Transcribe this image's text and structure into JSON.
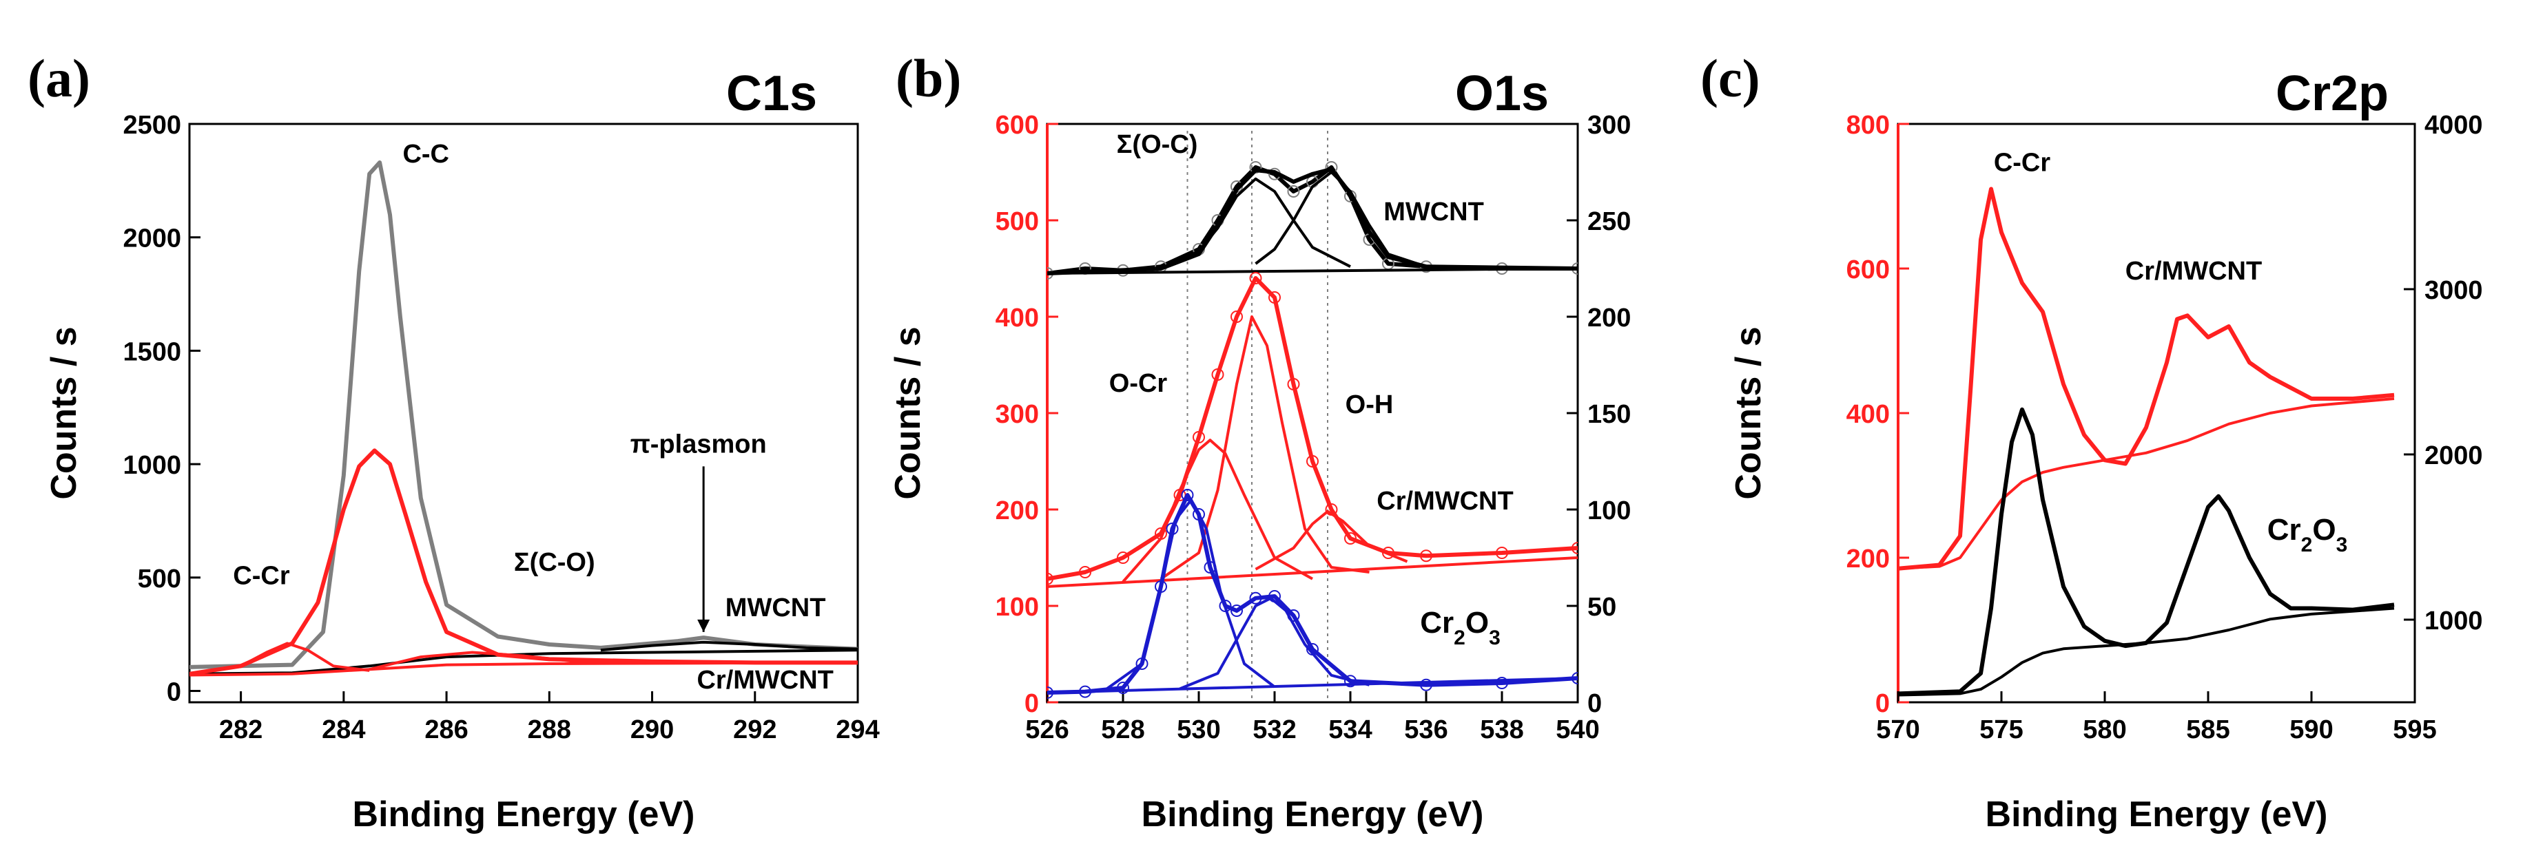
{
  "figure": {
    "panels": [
      "(a)",
      "(b)",
      "(c)"
    ]
  },
  "colors": {
    "black": "#000000",
    "red": "#ff2020",
    "blue": "#1a1acc",
    "grey": "#7f7f7f"
  },
  "chart_data": [
    {
      "panel_label": "(a)",
      "type": "line",
      "title": "C1s",
      "xlabel": "Binding Energy (eV)",
      "ylabel": "Counts / s",
      "xlim": [
        281,
        294
      ],
      "ylim": [
        -50,
        2500
      ],
      "xticks": [
        282,
        284,
        286,
        288,
        290,
        292,
        294
      ],
      "yticks": [
        0,
        500,
        1000,
        1500,
        2000,
        2500
      ],
      "series": [
        {
          "name": "MWCNT",
          "role": "data",
          "x": [
            281,
            283,
            283.6,
            284,
            284.3,
            284.5,
            284.7,
            284.9,
            285.1,
            285.5,
            286,
            287,
            288,
            289,
            290.5,
            291,
            292,
            294
          ],
          "values": [
            105,
            115,
            260,
            950,
            1850,
            2280,
            2330,
            2100,
            1650,
            850,
            380,
            240,
            205,
            190,
            220,
            235,
            205,
            185
          ]
        },
        {
          "name": "MWCNT background",
          "role": "background",
          "x": [
            281,
            283,
            284.5,
            286,
            288,
            290,
            292,
            294
          ],
          "values": [
            75,
            80,
            110,
            150,
            165,
            170,
            175,
            180
          ]
        },
        {
          "name": "MWCNT pi-plasmon",
          "role": "component",
          "x": [
            289,
            290,
            291,
            292,
            293,
            294
          ],
          "values": [
            180,
            200,
            215,
            205,
            190,
            185
          ]
        },
        {
          "name": "Cr/MWCNT",
          "role": "data",
          "x": [
            281,
            282,
            282.5,
            283,
            283.5,
            284,
            284.3,
            284.6,
            284.9,
            285.2,
            285.6,
            286,
            287,
            288,
            290,
            292,
            294
          ],
          "values": [
            75,
            110,
            160,
            210,
            390,
            800,
            990,
            1060,
            1000,
            780,
            480,
            260,
            160,
            140,
            130,
            125,
            125
          ]
        },
        {
          "name": "Cr/MWCNT background",
          "role": "background",
          "x": [
            281,
            283,
            284.5,
            286,
            288,
            294
          ],
          "values": [
            70,
            75,
            95,
            115,
            120,
            125
          ]
        },
        {
          "name": "C-Cr component",
          "role": "component",
          "x": [
            281,
            282,
            282.5,
            282.9,
            283.3,
            283.8,
            284.5
          ],
          "values": [
            72,
            110,
            170,
            210,
            180,
            110,
            90
          ]
        },
        {
          "name": "Σ(C-O) component",
          "role": "component",
          "x": [
            284.5,
            285.5,
            286.5,
            287.5,
            288.5,
            290
          ],
          "values": [
            95,
            150,
            170,
            155,
            130,
            125
          ]
        }
      ],
      "annotations": [
        {
          "text": "C-C",
          "x": 285.6,
          "y": 2330
        },
        {
          "text": "C-Cr",
          "x": 282.4,
          "y": 470
        },
        {
          "text": "Σ(C-O)",
          "x": 288.1,
          "y": 530
        },
        {
          "text": "π-plasmon",
          "x": 290.9,
          "y": 1050
        },
        {
          "text": "MWCNT",
          "x": 292.4,
          "y": 330
        },
        {
          "text": "Cr/MWCNT",
          "x": 292.2,
          "y": 10
        }
      ],
      "plasmon_arrow": {
        "x": 291,
        "y_from": 990,
        "y_to": 260
      }
    },
    {
      "panel_label": "(b)",
      "type": "scatter",
      "title": "O1s",
      "xlabel": "Binding Energy (eV)",
      "ylabel": "Counts / s",
      "xlim": [
        526,
        540
      ],
      "ylim": [
        0,
        600
      ],
      "xticks": [
        526,
        528,
        530,
        532,
        534,
        536,
        538,
        540
      ],
      "yticks": [
        0,
        100,
        200,
        300,
        400,
        500,
        600
      ],
      "y2lim": [
        0,
        300
      ],
      "y2ticks": [
        0,
        50,
        100,
        150,
        200,
        250,
        300
      ],
      "reference_lines_x": [
        529.7,
        531.4,
        533.4
      ],
      "series": [
        {
          "name": "MWCNT",
          "role": "data",
          "x": [
            526,
            527,
            528,
            529,
            530,
            530.5,
            531,
            531.5,
            532,
            532.5,
            533,
            533.5,
            534,
            534.5,
            535,
            536,
            538,
            540
          ],
          "values": [
            445,
            450,
            448,
            452,
            470,
            500,
            535,
            555,
            548,
            530,
            540,
            555,
            525,
            480,
            455,
            452,
            450,
            450
          ]
        },
        {
          "name": "MWCNT fit envelope",
          "role": "fit",
          "x": [
            526,
            529,
            530,
            530.5,
            531,
            531.5,
            532,
            532.5,
            533,
            533.5,
            534,
            534.5,
            535,
            536,
            540
          ],
          "values": [
            445,
            450,
            465,
            495,
            532,
            552,
            550,
            540,
            548,
            553,
            528,
            488,
            462,
            452,
            450
          ]
        },
        {
          "name": "MWCNT Σ(O-C) component 1",
          "role": "component",
          "x": [
            529,
            530,
            530.5,
            531,
            531.5,
            532,
            532.5,
            533,
            534
          ],
          "values": [
            450,
            468,
            492,
            525,
            543,
            530,
            500,
            472,
            452
          ]
        },
        {
          "name": "MWCNT Σ(O-C) component 2",
          "role": "component",
          "x": [
            531.5,
            532,
            532.5,
            533,
            533.5,
            534,
            534.5,
            535,
            536
          ],
          "values": [
            455,
            470,
            500,
            535,
            550,
            530,
            495,
            465,
            452
          ]
        },
        {
          "name": "MWCNT baseline",
          "role": "background",
          "x": [
            526,
            540
          ],
          "values": [
            445,
            450
          ]
        },
        {
          "name": "Cr/MWCNT",
          "role": "data",
          "x": [
            526,
            527,
            528,
            529,
            529.5,
            530,
            530.5,
            531,
            531.5,
            532,
            532.5,
            533,
            533.5,
            534,
            535,
            536,
            538,
            540
          ],
          "values": [
            128,
            135,
            150,
            175,
            215,
            275,
            340,
            400,
            440,
            420,
            330,
            250,
            200,
            170,
            155,
            152,
            155,
            160
          ]
        },
        {
          "name": "Cr/MWCNT baseline",
          "role": "background",
          "x": [
            526,
            540
          ],
          "values": [
            120,
            150
          ]
        },
        {
          "name": "Cr/MWCNT O-Cr component",
          "role": "component",
          "x": [
            528,
            529,
            529.5,
            530,
            530.3,
            530.7,
            531.2,
            532,
            533
          ],
          "values": [
            125,
            170,
            220,
            262,
            272,
            258,
            215,
            150,
            128
          ]
        },
        {
          "name": "Cr/MWCNT Σ(O-C) component",
          "role": "component",
          "x": [
            529,
            530,
            530.5,
            531,
            531.4,
            531.8,
            532.2,
            532.8,
            533.5,
            534.5
          ],
          "values": [
            128,
            155,
            220,
            330,
            400,
            370,
            290,
            180,
            140,
            135
          ]
        },
        {
          "name": "Cr/MWCNT O-H component",
          "role": "component",
          "x": [
            531.5,
            532.5,
            533,
            533.4,
            533.8,
            534.5,
            535.5
          ],
          "values": [
            138,
            160,
            185,
            198,
            188,
            162,
            146
          ]
        },
        {
          "name": "Cr2O3",
          "role": "data",
          "x": [
            526,
            527,
            528,
            528.5,
            529,
            529.3,
            529.7,
            530,
            530.3,
            530.7,
            531,
            531.5,
            532,
            532.5,
            533,
            534,
            536,
            538,
            540
          ],
          "values": [
            10,
            11,
            15,
            40,
            120,
            180,
            215,
            195,
            140,
            100,
            95,
            108,
            110,
            90,
            55,
            22,
            18,
            20,
            25
          ]
        },
        {
          "name": "Cr2O3 O-Cr component",
          "role": "component",
          "x": [
            527.5,
            528.5,
            529,
            529.4,
            529.8,
            530.2,
            530.6,
            531.2,
            532
          ],
          "values": [
            12,
            40,
            120,
            190,
            210,
            180,
            110,
            40,
            16
          ]
        },
        {
          "name": "Cr2O3 second component",
          "role": "component",
          "x": [
            529.5,
            530.5,
            531,
            531.5,
            531.9,
            532.3,
            532.8,
            533.5,
            534.5
          ],
          "values": [
            14,
            30,
            65,
            100,
            108,
            95,
            60,
            28,
            18
          ]
        },
        {
          "name": "Cr2O3 baseline",
          "role": "background",
          "x": [
            526,
            540
          ],
          "values": [
            10,
            25
          ]
        }
      ],
      "annotations": [
        {
          "text": "Σ(O-C)",
          "x": 528.9,
          "y": 570
        },
        {
          "text": "MWCNT",
          "x": 536.2,
          "y": 500
        },
        {
          "text": "O-Cr",
          "x": 528.4,
          "y": 322
        },
        {
          "text": "O-H",
          "x": 534.5,
          "y": 300
        },
        {
          "text": "Cr/MWCNT",
          "x": 536.5,
          "y": 200
        },
        {
          "text": "Cr",
          "sub": "2",
          "tail": "O",
          "sub2": "3",
          "x": 536.9,
          "y": 72
        }
      ]
    },
    {
      "panel_label": "(c)",
      "type": "line",
      "title": "Cr2p",
      "xlabel": "Binding Energy (eV)",
      "ylabel": "Counts / s",
      "xlim": [
        570,
        595
      ],
      "ylim": [
        0,
        800
      ],
      "xticks": [
        570,
        575,
        580,
        585,
        590,
        595
      ],
      "yticks": [
        0,
        200,
        400,
        600,
        800
      ],
      "y2lim": [
        500,
        4000
      ],
      "y2ticks": [
        1000,
        2000,
        3000,
        4000
      ],
      "series": [
        {
          "name": "Cr/MWCNT",
          "role": "data",
          "x": [
            570,
            572,
            573,
            573.5,
            574,
            574.5,
            575,
            576,
            577,
            578,
            579,
            580,
            581,
            582,
            583,
            583.5,
            584,
            585,
            586,
            587,
            588,
            590,
            592,
            594
          ],
          "values": [
            185,
            190,
            230,
            430,
            640,
            710,
            650,
            580,
            540,
            440,
            370,
            335,
            330,
            380,
            470,
            530,
            535,
            505,
            520,
            470,
            450,
            420,
            420,
            425
          ]
        },
        {
          "name": "Cr/MWCNT background",
          "role": "background",
          "x": [
            570,
            572,
            573,
            574,
            575,
            576,
            577,
            578,
            580,
            582,
            584,
            586,
            588,
            590,
            592,
            594
          ],
          "values": [
            185,
            188,
            200,
            240,
            280,
            305,
            318,
            325,
            335,
            345,
            362,
            385,
            400,
            410,
            415,
            420
          ]
        },
        {
          "name": "Cr2O3",
          "role": "data",
          "x": [
            570,
            573,
            574,
            574.5,
            575,
            575.5,
            576,
            576.5,
            577,
            578,
            579,
            580,
            581,
            582,
            583,
            584,
            585,
            585.5,
            586,
            587,
            588,
            589,
            590,
            592,
            594
          ],
          "values": [
            12,
            15,
            40,
            130,
            260,
            360,
            405,
            370,
            280,
            160,
            105,
            85,
            78,
            82,
            110,
            190,
            270,
            285,
            265,
            200,
            150,
            130,
            130,
            128,
            135
          ]
        },
        {
          "name": "Cr2O3 background",
          "role": "background",
          "x": [
            570,
            573,
            574,
            575,
            576,
            577,
            578,
            580,
            582,
            584,
            586,
            588,
            590,
            592,
            594
          ],
          "values": [
            10,
            12,
            18,
            35,
            55,
            68,
            74,
            78,
            82,
            88,
            100,
            115,
            122,
            126,
            130
          ]
        }
      ],
      "annotations": [
        {
          "text": "C-Cr",
          "x": 576,
          "y": 735
        },
        {
          "text": "Cr/MWCNT",
          "x": 584.3,
          "y": 585
        },
        {
          "text": "Cr",
          "sub": "2",
          "tail": "O",
          "sub2": "3",
          "x": 589.8,
          "y": 225
        }
      ]
    }
  ]
}
